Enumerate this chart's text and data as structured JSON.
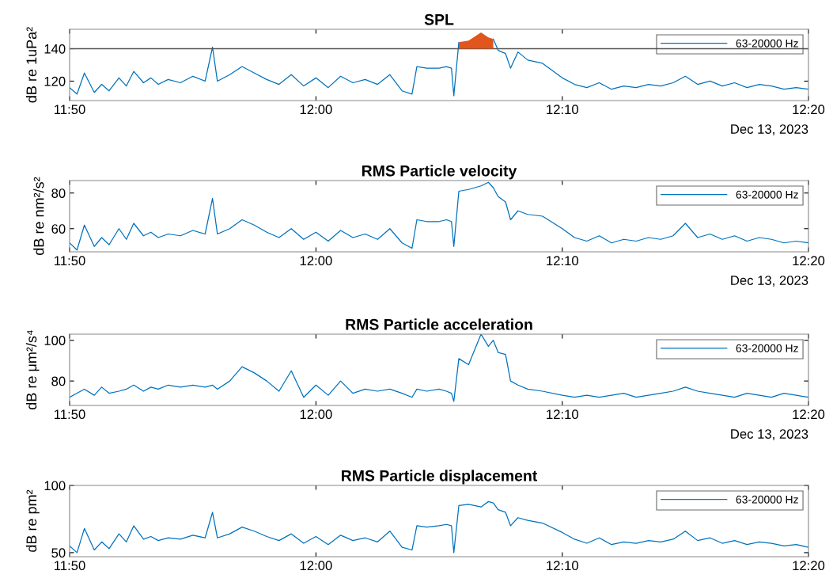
{
  "chart_data": [
    {
      "type": "line",
      "title": "SPL",
      "ylabel": "dB re 1uPa²",
      "legend": "top right",
      "xlim": [
        11.8333,
        12.3333
      ],
      "ylim": [
        108,
        152
      ],
      "yticks": [
        120,
        140
      ],
      "xticks": [
        {
          "value": 11.8333,
          "label": "11:50"
        },
        {
          "value": 12.0,
          "label": "12:00"
        },
        {
          "value": 12.1667,
          "label": "12:10"
        },
        {
          "value": 12.3333,
          "label": "12:20"
        }
      ],
      "annotations": [
        "Dec 13, 2023"
      ],
      "ref_lines": [
        {
          "axis": "y",
          "value": 140,
          "label": null,
          "color": "#555555"
        }
      ],
      "x": [
        11.8333,
        11.8383,
        11.8433,
        11.85,
        11.855,
        11.86,
        11.8667,
        11.8717,
        11.8767,
        11.8833,
        11.8883,
        11.8933,
        11.9,
        11.9083,
        11.9167,
        11.925,
        11.93,
        11.9333,
        11.9417,
        11.95,
        11.9583,
        11.9667,
        11.975,
        11.9833,
        11.9917,
        12.0,
        12.0083,
        12.0167,
        12.025,
        12.0333,
        12.0417,
        12.05,
        12.0583,
        12.065,
        12.0683,
        12.075,
        12.0833,
        12.0883,
        12.0917,
        12.0933,
        12.0967,
        12.1033,
        12.1117,
        12.1167,
        12.12,
        12.1233,
        12.1283,
        12.1317,
        12.1367,
        12.1433,
        12.1533,
        12.1667,
        12.175,
        12.1833,
        12.1917,
        12.2,
        12.2083,
        12.2167,
        12.225,
        12.2333,
        12.2417,
        12.25,
        12.2583,
        12.2667,
        12.275,
        12.2833,
        12.2917,
        12.3,
        12.3083,
        12.3167,
        12.325,
        12.3333
      ],
      "series": [
        {
          "name": "63-20000 Hz",
          "color": "#0072bd",
          "values": [
            116,
            112,
            125,
            113,
            118,
            114,
            122,
            117,
            126,
            119,
            122,
            118,
            121,
            119,
            123,
            120,
            141,
            120,
            124,
            129,
            125,
            121,
            118,
            124,
            117,
            122,
            116,
            123,
            119,
            121,
            118,
            124,
            114,
            112,
            129,
            128,
            128,
            129,
            128,
            111,
            144,
            null,
            null,
            null,
            146,
            139,
            137,
            128,
            138,
            133,
            131,
            122,
            118,
            116,
            119,
            115,
            117,
            116,
            118,
            117,
            119,
            123,
            118,
            120,
            117,
            119,
            116,
            118,
            117,
            115,
            116,
            115
          ]
        },
        {
          "type": "area",
          "color": "#e0561c",
          "x": [
            12.0967,
            12.1033,
            12.1117,
            12.1167,
            12.12
          ],
          "values": [
            144,
            145,
            150,
            147,
            146
          ]
        }
      ]
    },
    {
      "type": "line",
      "title": "RMS Particle velocity",
      "ylabel": "dB re nm²/s²",
      "legend": "top right",
      "xlim": [
        11.8333,
        12.3333
      ],
      "ylim": [
        47,
        87
      ],
      "yticks": [
        60,
        80
      ],
      "xticks": [
        {
          "value": 11.8333,
          "label": "11:50"
        },
        {
          "value": 12.0,
          "label": "12:00"
        },
        {
          "value": 12.1667,
          "label": "12:10"
        },
        {
          "value": 12.3333,
          "label": "12:20"
        }
      ],
      "annotations": [
        "Dec 13, 2023"
      ],
      "x": [
        11.8333,
        11.8383,
        11.8433,
        11.85,
        11.855,
        11.86,
        11.8667,
        11.8717,
        11.8767,
        11.8833,
        11.8883,
        11.8933,
        11.9,
        11.9083,
        11.9167,
        11.925,
        11.93,
        11.9333,
        11.9417,
        11.95,
        11.9583,
        11.9667,
        11.975,
        11.9833,
        11.9917,
        12.0,
        12.0083,
        12.0167,
        12.025,
        12.0333,
        12.0417,
        12.05,
        12.0583,
        12.065,
        12.0683,
        12.075,
        12.0833,
        12.0883,
        12.0917,
        12.0933,
        12.0967,
        12.1033,
        12.1117,
        12.1167,
        12.12,
        12.1233,
        12.1283,
        12.1317,
        12.1367,
        12.1433,
        12.1533,
        12.1667,
        12.175,
        12.1833,
        12.1917,
        12.2,
        12.2083,
        12.2167,
        12.225,
        12.2333,
        12.2417,
        12.25,
        12.2583,
        12.2667,
        12.275,
        12.2833,
        12.2917,
        12.3,
        12.3083,
        12.3167,
        12.325,
        12.3333
      ],
      "series": [
        {
          "name": "63-20000 Hz",
          "color": "#0072bd",
          "values": [
            52,
            48,
            62,
            50,
            55,
            51,
            60,
            54,
            63,
            56,
            58,
            55,
            57,
            56,
            59,
            57,
            77,
            57,
            60,
            65,
            62,
            58,
            55,
            60,
            54,
            58,
            53,
            59,
            55,
            57,
            54,
            60,
            52,
            49,
            65,
            64,
            64,
            65,
            64,
            50,
            81,
            82,
            84,
            86,
            83,
            78,
            75,
            65,
            70,
            68,
            67,
            60,
            55,
            53,
            56,
            52,
            54,
            53,
            55,
            54,
            56,
            63,
            55,
            57,
            54,
            56,
            53,
            55,
            54,
            52,
            53,
            52
          ]
        }
      ]
    },
    {
      "type": "line",
      "title": "RMS Particle acceleration",
      "ylabel": "dB re μm²/s⁴",
      "legend": "top right",
      "xlim": [
        11.8333,
        12.3333
      ],
      "ylim": [
        68,
        103
      ],
      "yticks": [
        80,
        100
      ],
      "xticks": [
        {
          "value": 11.8333,
          "label": "11:50"
        },
        {
          "value": 12.0,
          "label": "12:00"
        },
        {
          "value": 12.1667,
          "label": "12:10"
        },
        {
          "value": 12.3333,
          "label": "12:20"
        }
      ],
      "annotations": [
        "Dec 13, 2023"
      ],
      "x": [
        11.8333,
        11.8383,
        11.8433,
        11.85,
        11.855,
        11.86,
        11.8667,
        11.8717,
        11.8767,
        11.8833,
        11.8883,
        11.8933,
        11.9,
        11.9083,
        11.9167,
        11.925,
        11.93,
        11.9333,
        11.9417,
        11.95,
        11.9583,
        11.9667,
        11.975,
        11.9833,
        11.9917,
        12.0,
        12.0083,
        12.0167,
        12.025,
        12.0333,
        12.0417,
        12.05,
        12.0583,
        12.065,
        12.0683,
        12.075,
        12.0833,
        12.0883,
        12.0917,
        12.0933,
        12.0967,
        12.1033,
        12.1117,
        12.1167,
        12.12,
        12.1233,
        12.1283,
        12.1317,
        12.1367,
        12.1433,
        12.1533,
        12.1667,
        12.175,
        12.1833,
        12.1917,
        12.2,
        12.2083,
        12.2167,
        12.225,
        12.2333,
        12.2417,
        12.25,
        12.2583,
        12.2667,
        12.275,
        12.2833,
        12.2917,
        12.3,
        12.3083,
        12.3167,
        12.325,
        12.3333
      ],
      "series": [
        {
          "name": "63-20000 Hz",
          "color": "#0072bd",
          "values": [
            72,
            74,
            76,
            73,
            77,
            74,
            75,
            76,
            78,
            75,
            77,
            76,
            78,
            77,
            78,
            77,
            78,
            76,
            80,
            87,
            84,
            80,
            75,
            85,
            72,
            78,
            73,
            80,
            74,
            76,
            75,
            76,
            74,
            72,
            76,
            75,
            76,
            75,
            74,
            70,
            91,
            88,
            103,
            97,
            100,
            94,
            93,
            80,
            78,
            76,
            75,
            73,
            72,
            73,
            72,
            73,
            74,
            72,
            73,
            74,
            75,
            77,
            75,
            74,
            73,
            72,
            74,
            73,
            72,
            74,
            73,
            72
          ]
        }
      ]
    },
    {
      "type": "line",
      "title": "RMS Particle displacement",
      "ylabel": "dB re pm²",
      "legend": "top right",
      "xlim": [
        11.8333,
        12.3333
      ],
      "ylim": [
        47,
        100
      ],
      "yticks": [
        50,
        100
      ],
      "xticks": [
        {
          "value": 11.8333,
          "label": "11:50"
        },
        {
          "value": 12.0,
          "label": "12:00"
        },
        {
          "value": 12.1667,
          "label": "12:10"
        },
        {
          "value": 12.3333,
          "label": "12:20"
        }
      ],
      "x": [
        11.8333,
        11.8383,
        11.8433,
        11.85,
        11.855,
        11.86,
        11.8667,
        11.8717,
        11.8767,
        11.8833,
        11.8883,
        11.8933,
        11.9,
        11.9083,
        11.9167,
        11.925,
        11.93,
        11.9333,
        11.9417,
        11.95,
        11.9583,
        11.9667,
        11.975,
        11.9833,
        11.9917,
        12.0,
        12.0083,
        12.0167,
        12.025,
        12.0333,
        12.0417,
        12.05,
        12.0583,
        12.065,
        12.0683,
        12.075,
        12.0833,
        12.0883,
        12.0917,
        12.0933,
        12.0967,
        12.1033,
        12.1117,
        12.1167,
        12.12,
        12.1233,
        12.1283,
        12.1317,
        12.1367,
        12.1433,
        12.1533,
        12.1667,
        12.175,
        12.1833,
        12.1917,
        12.2,
        12.2083,
        12.2167,
        12.225,
        12.2333,
        12.2417,
        12.25,
        12.2583,
        12.2667,
        12.275,
        12.2833,
        12.2917,
        12.3,
        12.3083,
        12.3167,
        12.325,
        12.3333
      ],
      "series": [
        {
          "name": "63-20000 Hz",
          "color": "#0072bd",
          "values": [
            55,
            50,
            68,
            52,
            58,
            53,
            64,
            58,
            70,
            60,
            62,
            59,
            61,
            60,
            63,
            61,
            80,
            61,
            64,
            69,
            66,
            62,
            59,
            64,
            57,
            62,
            56,
            63,
            59,
            61,
            58,
            66,
            54,
            52,
            70,
            69,
            70,
            71,
            70,
            50,
            85,
            86,
            84,
            88,
            87,
            82,
            80,
            70,
            76,
            74,
            72,
            65,
            60,
            57,
            61,
            56,
            58,
            57,
            59,
            58,
            60,
            66,
            59,
            61,
            57,
            59,
            56,
            58,
            57,
            55,
            56,
            54
          ]
        }
      ]
    }
  ]
}
